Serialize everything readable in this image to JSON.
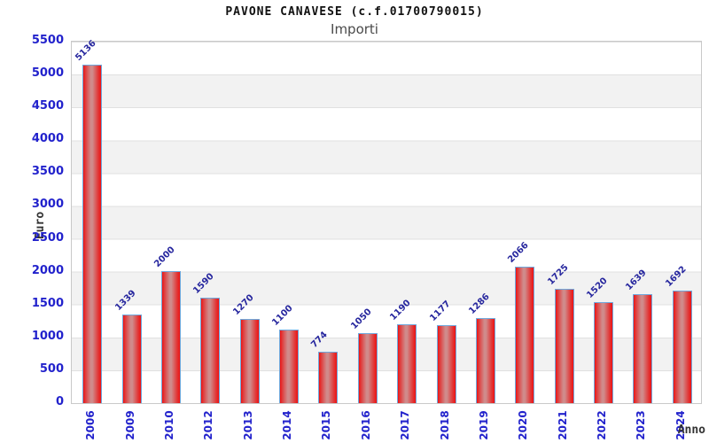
{
  "chart_data": {
    "type": "bar",
    "title": "PAVONE CANAVESE (c.f.01700790015)",
    "subtitle": "Importi",
    "xlabel": "Anno",
    "ylabel": "Euro",
    "categories": [
      "2006",
      "2009",
      "2010",
      "2012",
      "2013",
      "2014",
      "2015",
      "2016",
      "2017",
      "2018",
      "2019",
      "2020",
      "2021",
      "2022",
      "2023",
      "2024"
    ],
    "values": [
      5136,
      1339,
      2000,
      1590,
      1270,
      1100,
      774,
      1050,
      1190,
      1177,
      1286,
      2066,
      1725,
      1520,
      1639,
      1692
    ],
    "ylim": [
      0,
      5500
    ],
    "yticks": [
      0,
      500,
      1000,
      1500,
      2000,
      2500,
      3000,
      3500,
      4000,
      4500,
      5000,
      5500
    ],
    "grid": true,
    "legend": false,
    "colors": {
      "bar_edge_red": "#ee1212",
      "bar_mid_light": "#d08b8b",
      "bar_border_blue": "#6fa8dc",
      "tick_label_blue": "#2222cc",
      "value_label_navy": "#26269e",
      "band_gray": "#f2f2f2",
      "gridline_gray": "#e0e0e0",
      "title_black": "#111111",
      "subtitle_gray": "#4a4a4a"
    }
  }
}
